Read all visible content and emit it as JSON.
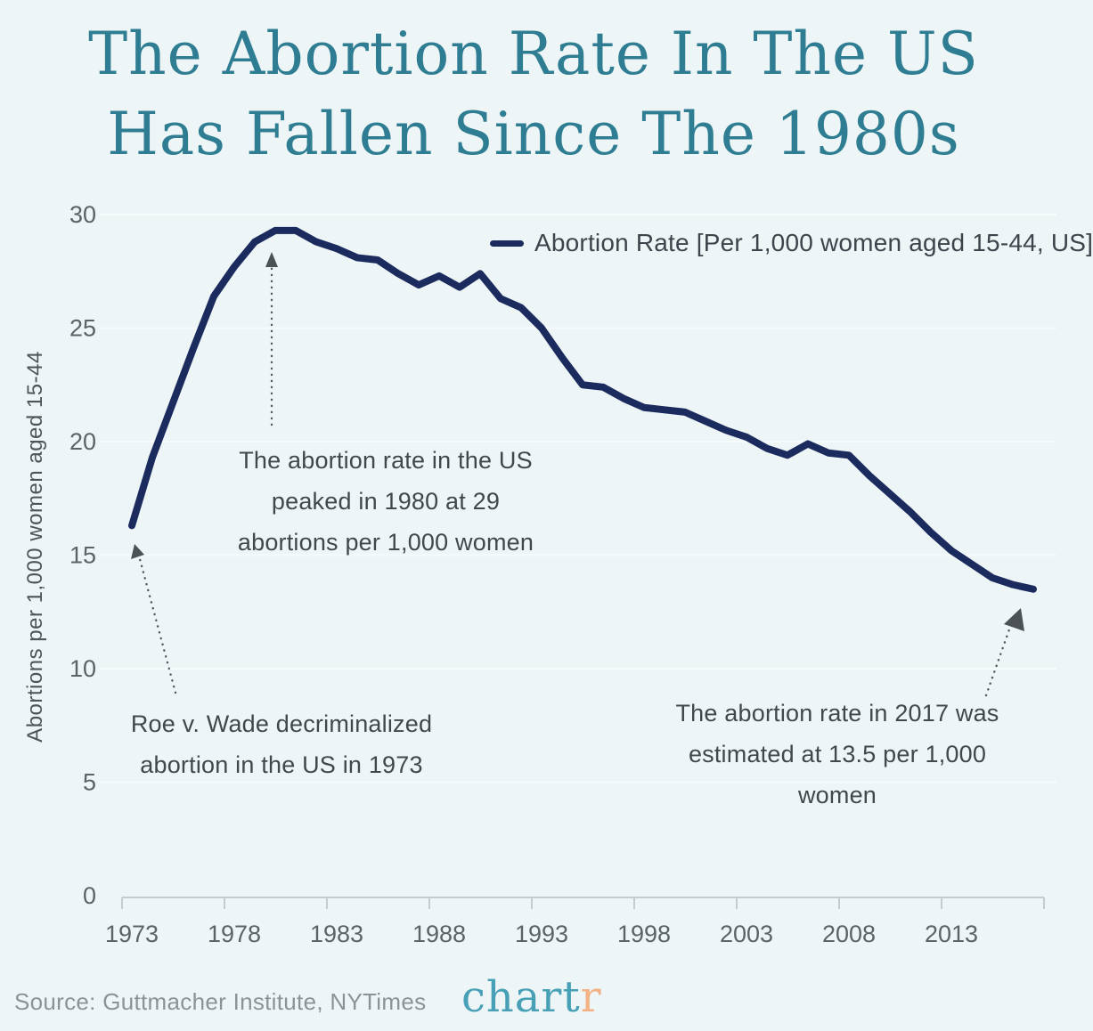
{
  "title": {
    "line1": "The Abortion Rate In The US",
    "line2": "Has Fallen Since The 1980s"
  },
  "legend": {
    "label": "Abortion Rate [Per 1,000 women aged 15-44, US]"
  },
  "annotations": {
    "peak": {
      "line1": "The abortion rate in the US",
      "line2": "peaked in 1980 at 29",
      "line3": "abortions per 1,000 women"
    },
    "roe": {
      "line1": "Roe v. Wade decriminalized",
      "line2": "abortion in the US in 1973"
    },
    "latest": {
      "line1": "The abortion rate in 2017 was",
      "line2": "estimated at 13.5 per 1,000 women"
    }
  },
  "footer": {
    "source": "Source: Guttmacher Institute, NYTimes",
    "logo_main": "chart",
    "logo_accent": "r"
  },
  "colors": {
    "background": "#edf5f6",
    "title_teal": "#2f7d92",
    "line_navy": "#1b2b5e",
    "text_dark": "#42474c",
    "tick_gray": "#5c6266",
    "axis_gray": "#c6cbce",
    "source_gray": "#8d9296",
    "logo_teal": "#47a0b5",
    "logo_salmon": "#f2b285"
  },
  "chart_data": {
    "type": "line",
    "title": "The Abortion Rate In The US Has Fallen Since The 1980s",
    "xlabel": "",
    "ylabel": "Abortions per 1,000 women aged 15-44",
    "ylim": [
      0,
      30
    ],
    "xlim": [
      1973,
      2017
    ],
    "grid": "horizontal",
    "legend_position": "top-right",
    "yticks": [
      0,
      5,
      10,
      15,
      20,
      25,
      30
    ],
    "xticks": [
      1973,
      1978,
      1983,
      1988,
      1993,
      1998,
      2003,
      2008,
      2013
    ],
    "x": [
      1973,
      1974,
      1975,
      1976,
      1977,
      1978,
      1979,
      1980,
      1981,
      1982,
      1983,
      1984,
      1985,
      1986,
      1987,
      1988,
      1989,
      1990,
      1991,
      1992,
      1993,
      1994,
      1995,
      1996,
      1997,
      1998,
      1999,
      2000,
      2001,
      2002,
      2003,
      2004,
      2005,
      2006,
      2007,
      2008,
      2009,
      2010,
      2011,
      2012,
      2013,
      2014,
      2015,
      2016,
      2017
    ],
    "series": [
      {
        "name": "Abortion Rate [Per 1,000 women aged 15-44, US]",
        "color": "#1b2b5e",
        "values": [
          16.3,
          19.3,
          21.7,
          24.1,
          26.4,
          27.7,
          28.8,
          29.3,
          29.3,
          28.8,
          28.5,
          28.1,
          28.0,
          27.4,
          26.9,
          27.3,
          26.8,
          27.4,
          26.3,
          25.9,
          25.0,
          23.7,
          22.5,
          22.4,
          21.9,
          21.5,
          21.4,
          21.3,
          20.9,
          20.5,
          20.2,
          19.7,
          19.4,
          19.9,
          19.5,
          19.4,
          18.5,
          17.7,
          16.9,
          16.0,
          15.2,
          14.6,
          14.0,
          13.7,
          13.5
        ]
      }
    ],
    "annotated_points": [
      {
        "year": 1980,
        "value": 29.3,
        "note": "peak"
      },
      {
        "year": 2017,
        "value": 13.5,
        "note": "latest estimate"
      }
    ]
  }
}
